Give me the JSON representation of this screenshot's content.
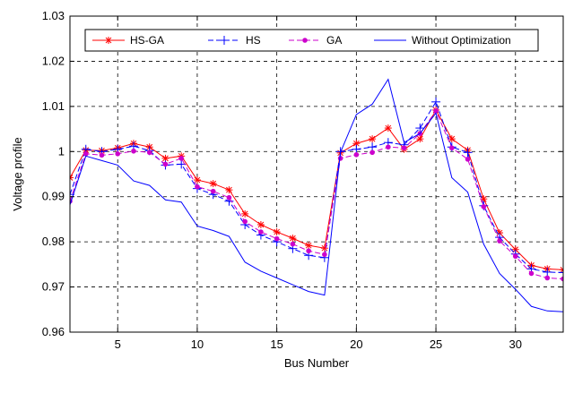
{
  "chart_data": {
    "type": "line",
    "title": "",
    "xlabel": "Bus Number",
    "ylabel": "Voltage profile",
    "xlim": [
      2,
      33
    ],
    "ylim": [
      0.96,
      1.03
    ],
    "xticks": [
      5,
      10,
      15,
      20,
      25,
      30
    ],
    "yticks": [
      0.96,
      0.97,
      0.98,
      0.99,
      1.0,
      1.01,
      1.02,
      1.03
    ],
    "ytick_labels": [
      "0.96",
      "0.97",
      "0.98",
      "0.99",
      "1",
      "1.01",
      "1.02",
      "1.03"
    ],
    "grid": true,
    "grid_style": "dashed",
    "legend_placement": "top",
    "x": [
      2,
      3,
      4,
      5,
      6,
      7,
      8,
      9,
      10,
      11,
      12,
      13,
      14,
      15,
      16,
      17,
      18,
      19,
      20,
      21,
      22,
      23,
      24,
      25,
      26,
      27,
      28,
      29,
      30,
      31,
      32,
      33
    ],
    "series": [
      {
        "name": "HS-GA",
        "color": "#ff0000",
        "marker": "star",
        "dash": "solid",
        "values": [
          0.9942,
          1.0003,
          1.0002,
          1.0008,
          1.0018,
          1.001,
          0.9985,
          0.999,
          0.9937,
          0.9929,
          0.9915,
          0.9862,
          0.9838,
          0.9822,
          0.9808,
          0.9792,
          0.9786,
          0.9997,
          1.0018,
          1.0028,
          1.0052,
          1.0005,
          1.0028,
          1.0092,
          1.0028,
          1.0003,
          0.9895,
          0.982,
          0.9783,
          0.9748,
          0.974,
          0.9738
        ]
      },
      {
        "name": "HS",
        "color": "#0000ff",
        "marker": "plus",
        "dash": "dashed",
        "values": [
          0.9905,
          1.0005,
          1.0,
          1.0005,
          1.0012,
          1.0002,
          0.997,
          0.9972,
          0.9918,
          0.9905,
          0.989,
          0.9838,
          0.9815,
          0.98,
          0.9785,
          0.977,
          0.9765,
          1.0,
          1.0005,
          1.001,
          1.002,
          1.0015,
          1.0052,
          1.011,
          1.001,
          0.9998,
          0.988,
          0.981,
          0.9773,
          0.974,
          0.9733,
          0.9732
        ]
      },
      {
        "name": "GA",
        "color": "#cc00cc",
        "marker": "dot",
        "dash": "dashed",
        "values": [
          0.989,
          0.9995,
          0.9992,
          0.9995,
          1.0001,
          0.9998,
          0.9972,
          0.9985,
          0.9922,
          0.9912,
          0.9898,
          0.9845,
          0.9822,
          0.9807,
          0.9795,
          0.978,
          0.9772,
          0.9985,
          0.9993,
          0.9998,
          1.001,
          1.0008,
          1.004,
          1.009,
          1.0008,
          0.9983,
          0.9878,
          0.9802,
          0.9768,
          0.973,
          0.972,
          0.9718
        ]
      },
      {
        "name": "Without Optimization",
        "color": "#0000ff",
        "marker": "none",
        "dash": "solid",
        "values": [
          0.9882,
          0.999,
          0.998,
          0.997,
          0.9935,
          0.9925,
          0.9893,
          0.9888,
          0.9835,
          0.9825,
          0.9812,
          0.9755,
          0.9735,
          0.972,
          0.9705,
          0.969,
          0.9682,
          0.9998,
          1.0082,
          1.0105,
          1.016,
          1.002,
          1.004,
          1.0085,
          0.9942,
          0.991,
          0.9795,
          0.973,
          0.9695,
          0.9657,
          0.9647,
          0.9645
        ]
      }
    ]
  }
}
